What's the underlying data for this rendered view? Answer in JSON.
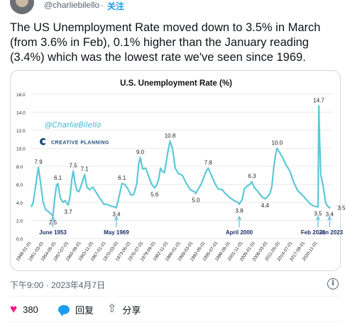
{
  "author": {
    "handle": "@charliebilello",
    "dot": "·",
    "follow_label": "关注"
  },
  "tweet": {
    "text": "The US Unemployment Rate moved down to 3.5% in March (from 3.6% in Feb), 0.1% higher than the January reading (3.4%) which was the lowest rate we've seen since 1969."
  },
  "chart_data": {
    "type": "line",
    "title": "U.S. Unemployment Rate (%)",
    "ylim": [
      0,
      16
    ],
    "yticks": [
      "0.0",
      "2.0",
      "4.0",
      "6.0",
      "8.0",
      "10.0",
      "12.0",
      "14.0",
      "16.0"
    ],
    "xlim": [
      1948.0,
      2023.5
    ],
    "xtick_labels": [
      "1948-01-01",
      "1951-03-01",
      "1954-05-01",
      "1957-07-01",
      "1960-09-01",
      "1963-11-01",
      "1967-01-01",
      "1970-03-01",
      "1973-05-01",
      "1976-07-01",
      "1979-09-01",
      "1982-11-01",
      "1986-01-01",
      "1989-03-01",
      "1992-05-01",
      "1995-07-01",
      "1998-09-01",
      "2001-11-01",
      "2005-01-01",
      "2008-03-01",
      "2011-05-01",
      "2014-07-01",
      "2017-09-01",
      "2020-11-01"
    ],
    "grid": true,
    "line_color": "#5bc8d8",
    "watermark": "@CharlieBilello",
    "logo_text": "CREATIVE PLANNING",
    "series": [
      {
        "x": [
          1948.0,
          1948.5,
          1949.0,
          1949.5,
          1949.8,
          1950.3,
          1951.0,
          1951.6,
          1952.3,
          1953.0,
          1953.45,
          1953.8,
          1954.3,
          1954.7,
          1955.3,
          1956.0,
          1956.5,
          1957.3,
          1957.8,
          1958.2,
          1958.55,
          1959.0,
          1959.5,
          1960.0,
          1960.5,
          1961.0,
          1961.4,
          1962.0,
          1962.7,
          1963.5,
          1964.5,
          1965.5,
          1966.3,
          1967.0,
          1968.0,
          1969.0,
          1969.4,
          1970.0,
          1970.8,
          1971.5,
          1972.3,
          1973.1,
          1973.8,
          1974.5,
          1975.0,
          1975.4,
          1976.0,
          1976.8,
          1977.5,
          1978.3,
          1979.0,
          1979.5,
          1980.0,
          1980.5,
          1981.0,
          1981.5,
          1982.3,
          1982.9,
          1983.5,
          1984.2,
          1985.0,
          1986.0,
          1987.0,
          1988.0,
          1989.0,
          1989.4,
          1990.0,
          1990.7,
          1991.5,
          1992.0,
          1992.5,
          1993.3,
          1994.3,
          1995.0,
          1996.0,
          1997.0,
          1998.0,
          1999.0,
          2000.0,
          2000.3,
          2001.0,
          2001.6,
          2002.2,
          2003.0,
          2003.5,
          2004.0,
          2005.0,
          2006.0,
          2006.8,
          2007.3,
          2008.0,
          2008.5,
          2009.0,
          2009.5,
          2009.8,
          2010.5,
          2011.2,
          2012.0,
          2013.0,
          2014.0,
          2015.0,
          2016.0,
          2017.0,
          2018.0,
          2019.0,
          2020.1,
          2020.3,
          2020.5,
          2020.8,
          2021.2,
          2021.6,
          2022.0,
          2022.5,
          2023.0,
          2023.2
        ],
        "y": [
          3.5,
          4.0,
          5.5,
          7.0,
          7.9,
          6.3,
          4.0,
          3.2,
          3.0,
          2.7,
          2.5,
          4.0,
          5.8,
          6.1,
          4.5,
          4.0,
          4.2,
          3.7,
          4.8,
          6.5,
          7.5,
          6.2,
          5.3,
          5.2,
          5.8,
          6.5,
          7.1,
          5.7,
          5.4,
          5.7,
          5.0,
          4.3,
          3.8,
          3.8,
          3.6,
          3.5,
          3.4,
          4.5,
          6.1,
          6.0,
          5.5,
          4.8,
          4.9,
          6.0,
          8.2,
          9.0,
          7.7,
          7.8,
          6.9,
          6.0,
          5.6,
          5.9,
          6.5,
          7.8,
          7.4,
          7.3,
          9.5,
          10.8,
          10.0,
          7.8,
          7.2,
          7.0,
          6.1,
          5.4,
          5.2,
          5.0,
          5.5,
          6.0,
          6.9,
          7.5,
          7.8,
          7.0,
          6.0,
          5.5,
          5.4,
          4.9,
          4.5,
          4.2,
          4.0,
          3.8,
          4.3,
          5.5,
          5.8,
          6.0,
          6.3,
          5.7,
          5.2,
          4.6,
          4.4,
          4.6,
          5.0,
          5.8,
          8.0,
          9.5,
          10.0,
          9.5,
          9.0,
          8.2,
          7.5,
          6.2,
          5.3,
          4.9,
          4.4,
          3.9,
          3.6,
          3.5,
          14.7,
          11.0,
          7.0,
          6.3,
          5.2,
          4.0,
          3.6,
          3.4,
          3.5
        ]
      }
    ],
    "data_labels": [
      {
        "x": 1949.8,
        "y": 7.9,
        "text": "7.9",
        "pos": "above"
      },
      {
        "x": 1953.45,
        "y": 2.5,
        "text": "2.5",
        "pos": "below"
      },
      {
        "x": 1954.7,
        "y": 6.1,
        "text": "6.1",
        "pos": "above"
      },
      {
        "x": 1957.3,
        "y": 3.7,
        "text": "3.7",
        "pos": "below"
      },
      {
        "x": 1958.55,
        "y": 7.5,
        "text": "7.5",
        "pos": "above"
      },
      {
        "x": 1961.4,
        "y": 7.1,
        "text": "7.1",
        "pos": "above"
      },
      {
        "x": 1969.4,
        "y": 3.4,
        "text": "3.4",
        "pos": "below"
      },
      {
        "x": 1970.8,
        "y": 6.1,
        "text": "6.1",
        "pos": "above"
      },
      {
        "x": 1975.4,
        "y": 9.0,
        "text": "9.0",
        "pos": "above"
      },
      {
        "x": 1979.0,
        "y": 5.6,
        "text": "5.6",
        "pos": "below"
      },
      {
        "x": 1982.9,
        "y": 10.8,
        "text": "10.8",
        "pos": "above"
      },
      {
        "x": 1989.4,
        "y": 5.0,
        "text": "5.0",
        "pos": "below"
      },
      {
        "x": 1992.5,
        "y": 7.8,
        "text": "7.8",
        "pos": "above"
      },
      {
        "x": 2000.3,
        "y": 3.8,
        "text": "3.8",
        "pos": "below"
      },
      {
        "x": 2003.5,
        "y": 6.3,
        "text": "6.3",
        "pos": "above"
      },
      {
        "x": 2006.8,
        "y": 4.4,
        "text": "4.4",
        "pos": "below"
      },
      {
        "x": 2009.8,
        "y": 10.0,
        "text": "10.0",
        "pos": "above"
      },
      {
        "x": 2020.1,
        "y": 3.5,
        "text": "3.5",
        "pos": "below"
      },
      {
        "x": 2020.3,
        "y": 14.7,
        "text": "14.7",
        "pos": "above"
      },
      {
        "x": 2023.0,
        "y": 3.4,
        "text": "3.4",
        "pos": "below"
      },
      {
        "x": 2023.2,
        "y": 3.5,
        "text": "3.5",
        "pos": "right"
      }
    ],
    "annotations": [
      {
        "text": "June 1953",
        "x": 1953.45
      },
      {
        "text": "May 1969",
        "x": 1969.4
      },
      {
        "text": "April 2000",
        "x": 2000.3
      },
      {
        "text": "Feb 2020",
        "x": 2020.1
      },
      {
        "text": "Jan 2023",
        "x": 2023.0
      }
    ]
  },
  "timestamp": "下午9:00 · 2023年4月7日",
  "info_icon_glyph": "i",
  "actions": {
    "like_count": "380",
    "reply_label": "回复",
    "share_label": "分享",
    "heart_glyph": "♥",
    "share_glyph": "⇧"
  }
}
